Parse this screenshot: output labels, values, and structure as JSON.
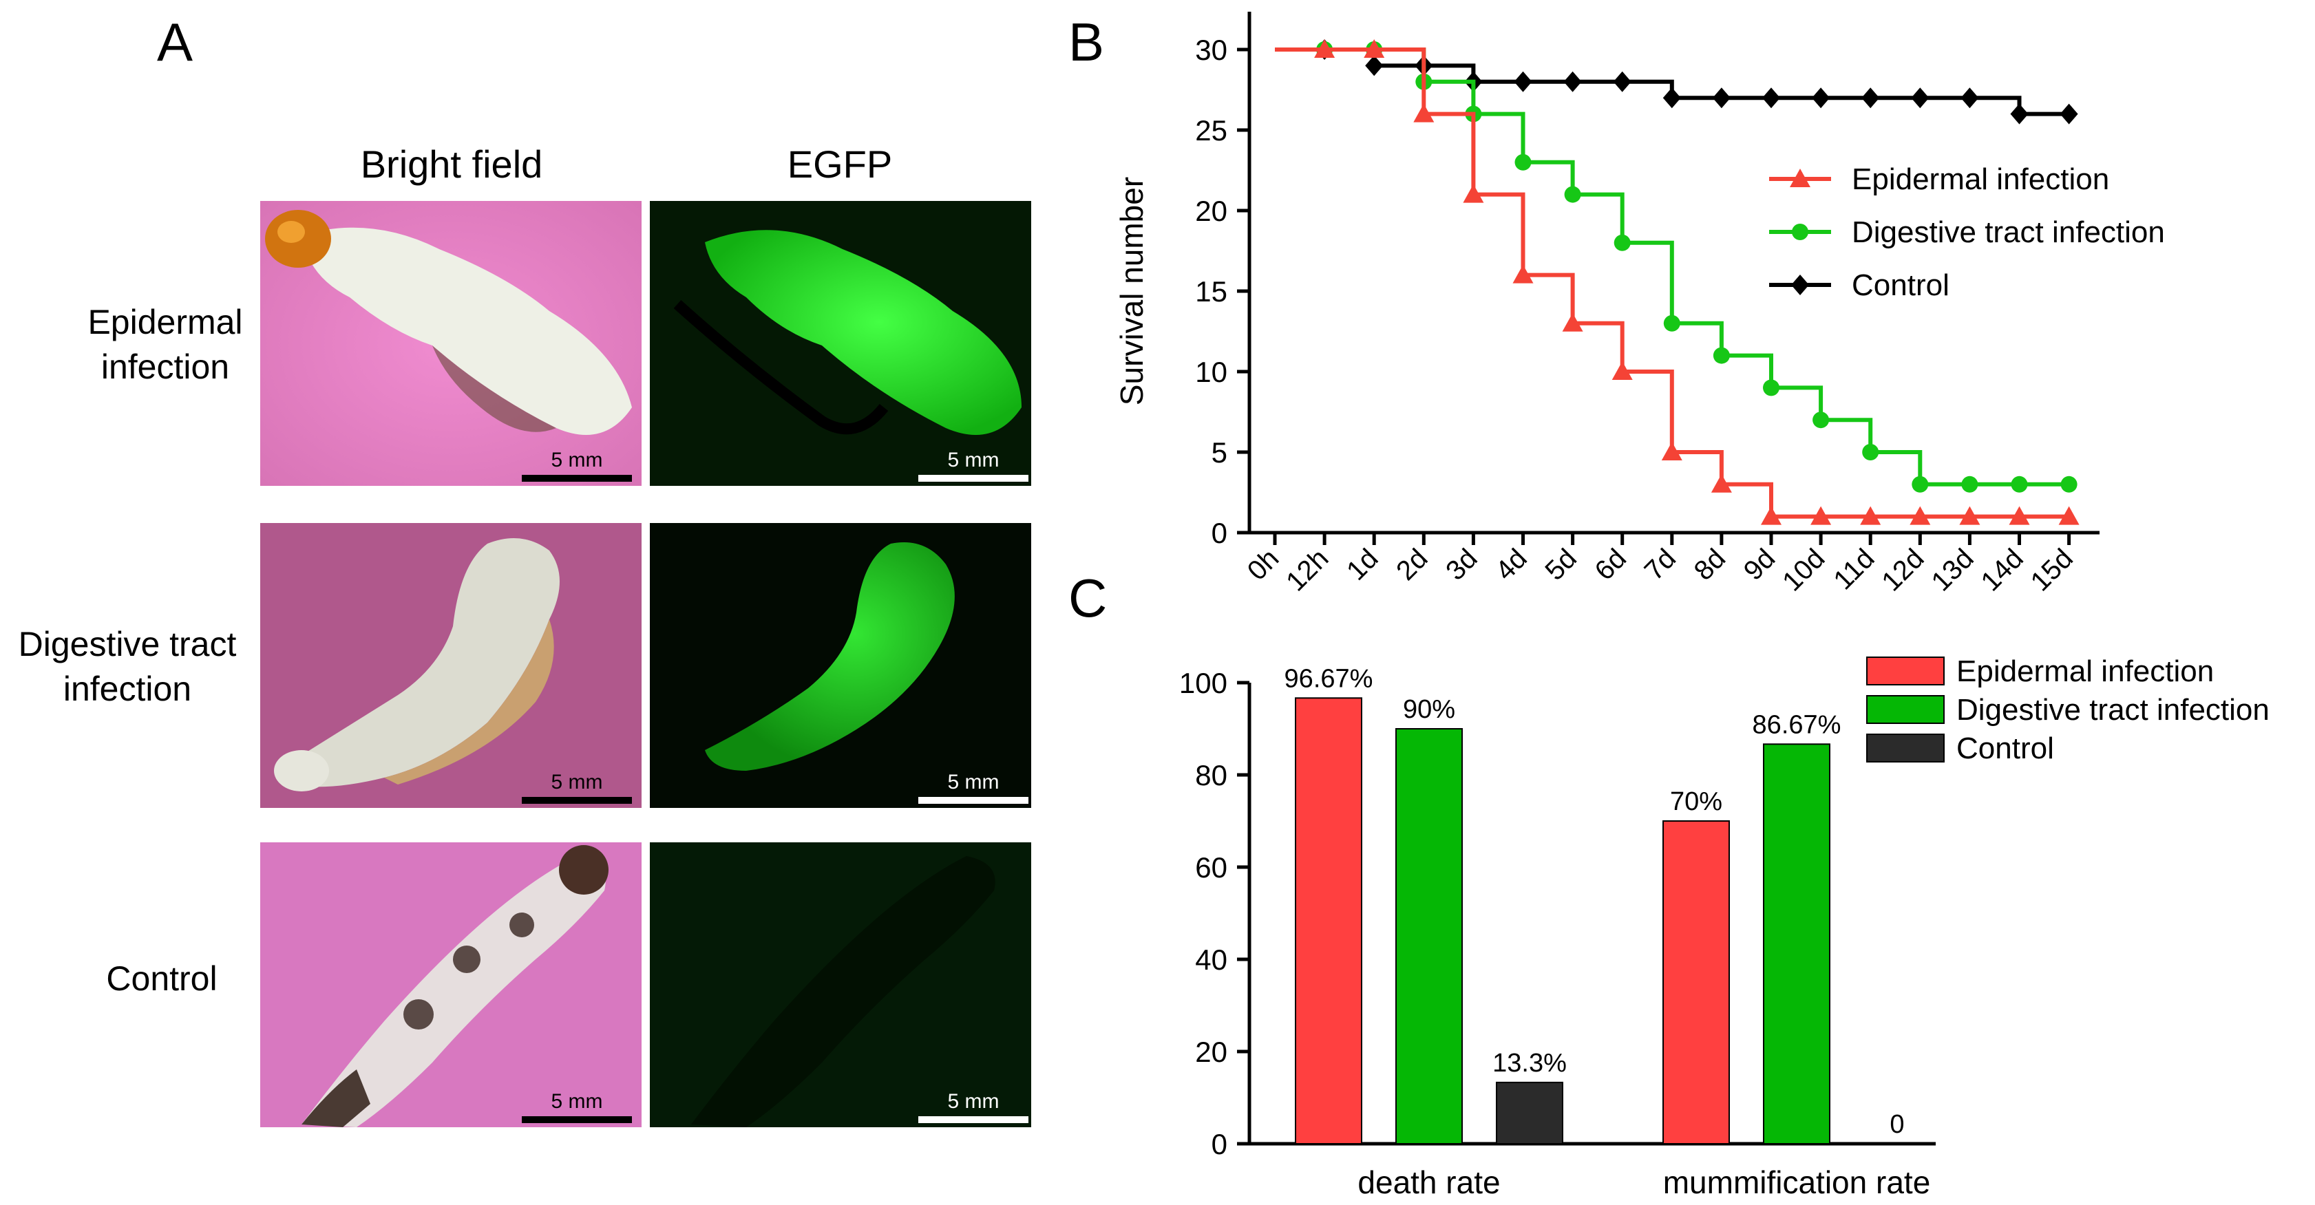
{
  "panel_a": {
    "letter": "A",
    "columns": [
      "Bright field",
      "EGFP"
    ],
    "rows": [
      {
        "label_line1": "Epidermal",
        "label_line2": "infection"
      },
      {
        "label_line1": "Digestive tract",
        "label_line2": "infection"
      },
      {
        "label_line1": "Control",
        "label_line2": ""
      }
    ],
    "scale_bar": "5 mm",
    "colors": {
      "bright_field_bg": "#e17fc0",
      "egfp_bg": "#000000",
      "egfp": "#33ff33",
      "larva": "#eef0e6"
    }
  },
  "chart_data": [
    {
      "panel": "B",
      "type": "line",
      "step": true,
      "ylabel": "Survival number",
      "xlabel": "",
      "categories": [
        "0h",
        "12h",
        "1d",
        "2d",
        "3d",
        "4d",
        "5d",
        "6d",
        "7d",
        "8d",
        "9d",
        "10d",
        "11d",
        "12d",
        "13d",
        "14d",
        "15d"
      ],
      "ylim": [
        0,
        30
      ],
      "yticks": [
        0,
        5,
        10,
        15,
        20,
        25,
        30
      ],
      "legend_position": "right",
      "series": [
        {
          "name": "Epidermal infection",
          "color": "#f44336",
          "marker": "triangle",
          "values": [
            30,
            30,
            30,
            26,
            21,
            16,
            13,
            10,
            5,
            3,
            1,
            1,
            1,
            1,
            1,
            1,
            1
          ]
        },
        {
          "name": "Digestive tract infection",
          "color": "#16c716",
          "marker": "circle",
          "values": [
            30,
            30,
            30,
            28,
            26,
            23,
            21,
            18,
            13,
            11,
            9,
            7,
            5,
            3,
            3,
            3,
            3
          ]
        },
        {
          "name": "Control",
          "color": "#000000",
          "marker": "diamond",
          "values": [
            30,
            30,
            29,
            29,
            28,
            28,
            28,
            28,
            27,
            27,
            27,
            27,
            27,
            27,
            27,
            26,
            26
          ]
        }
      ]
    },
    {
      "panel": "C",
      "type": "bar",
      "categories": [
        "death rate",
        "mummification rate"
      ],
      "ylim": [
        0,
        100
      ],
      "yticks": [
        0,
        20,
        40,
        60,
        80,
        100
      ],
      "legend_position": "top-right",
      "series": [
        {
          "name": "Epidermal infection",
          "color": "#ff4040",
          "values": [
            96.67,
            70
          ],
          "labels": [
            "96.67%",
            "70%"
          ]
        },
        {
          "name": "Digestive tract infection",
          "color": "#05b705",
          "values": [
            90,
            86.67
          ],
          "labels": [
            "90%",
            "86.67%"
          ]
        },
        {
          "name": "Control",
          "color": "#2b2b2b",
          "values": [
            13.3,
            0
          ],
          "labels": [
            "13.3%",
            "0"
          ]
        }
      ]
    }
  ]
}
